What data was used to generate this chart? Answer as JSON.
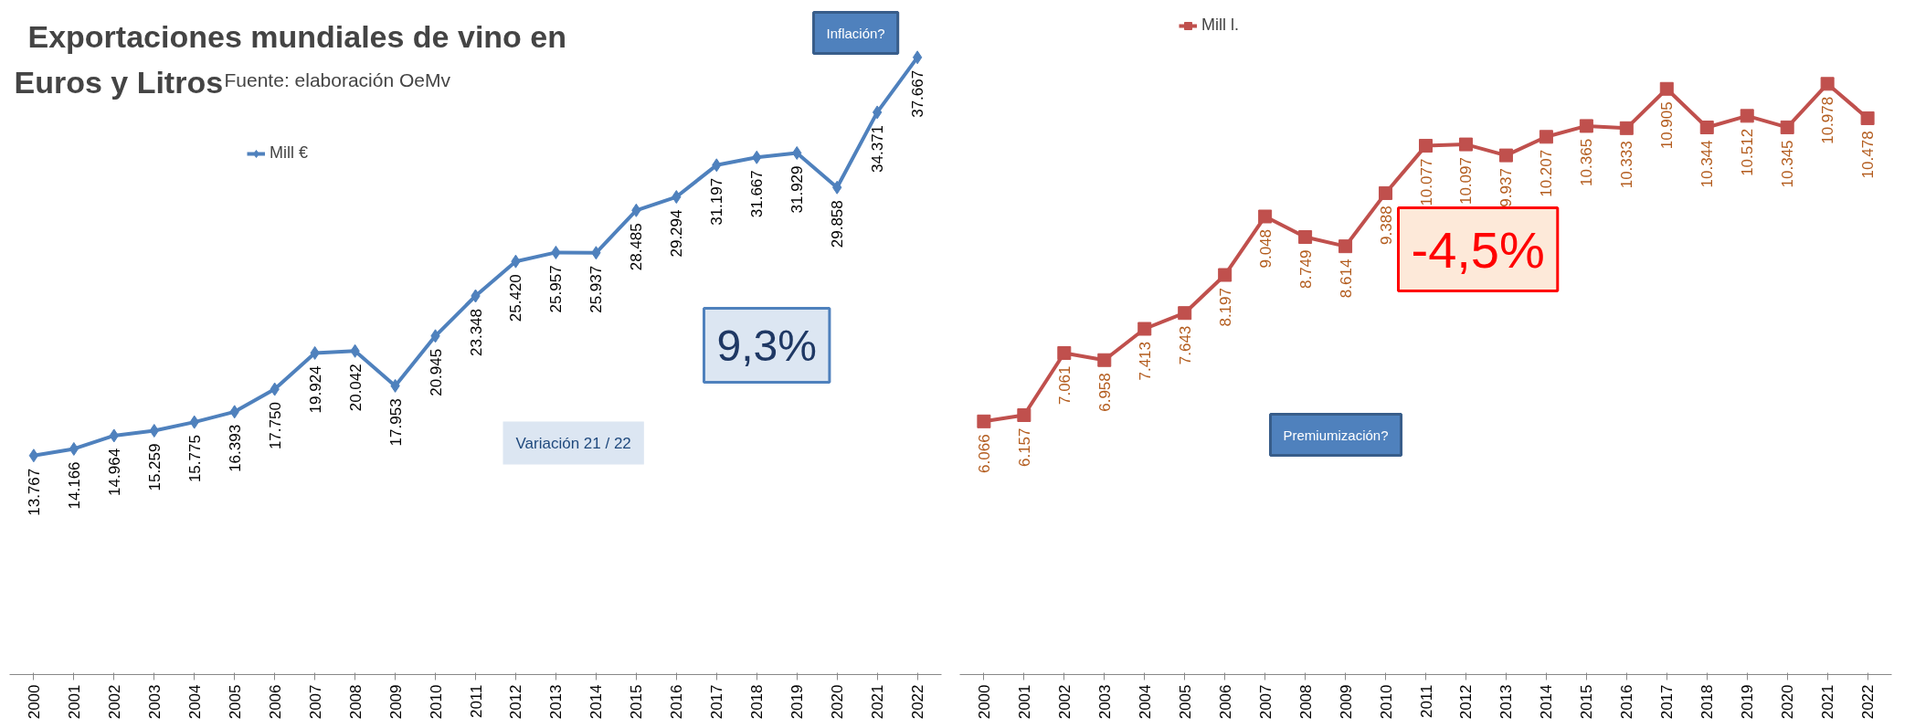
{
  "chart_data": [
    {
      "type": "line",
      "title": "Exportaciones mundiales de vino en Euros y Litros",
      "subtitle": "Fuente: elaboración OeMv",
      "categories": [
        "2000",
        "2001",
        "2002",
        "2003",
        "2004",
        "2005",
        "2006",
        "2007",
        "2008",
        "2009",
        "2010",
        "2011",
        "2012",
        "2013",
        "2014",
        "2015",
        "2016",
        "2017",
        "2018",
        "2019",
        "2020",
        "2021",
        "2022"
      ],
      "series": [
        {
          "name": "Mill €",
          "color": "#4f81bd",
          "values": [
            13767,
            14166,
            14964,
            15259,
            15775,
            16393,
            17750,
            19924,
            20042,
            17953,
            20945,
            23348,
            25420,
            25957,
            25937,
            28485,
            29294,
            31197,
            31667,
            31929,
            29858,
            34371,
            37667
          ],
          "value_labels": [
            "13.767",
            "14.166",
            "14.964",
            "15.259",
            "15.775",
            "16.393",
            "17.750",
            "19.924",
            "20.042",
            "17.953",
            "20.945",
            "23.348",
            "25.420",
            "25.957",
            "25.937",
            "28.485",
            "29.294",
            "31.197",
            "31.667",
            "31.929",
            "29.858",
            "34.371",
            "37.667"
          ]
        }
      ],
      "marker": "diamond",
      "legend": "top left",
      "grid": false,
      "tick_labels": "x",
      "annotations": [
        "Inflación?",
        "9,3%",
        "Variación 21 / 22"
      ]
    },
    {
      "type": "line",
      "categories": [
        "2000",
        "2001",
        "2002",
        "2003",
        "2004",
        "2005",
        "2006",
        "2007",
        "2008",
        "2009",
        "2010",
        "2011",
        "2012",
        "2013",
        "2014",
        "2015",
        "2016",
        "2017",
        "2018",
        "2019",
        "2020",
        "2021",
        "2022"
      ],
      "series": [
        {
          "name": "Mill l.",
          "color": "#c0504d",
          "values": [
            6066,
            6157,
            7061,
            6958,
            7413,
            7643,
            8197,
            9048,
            8749,
            8614,
            9388,
            10077,
            10097,
            9937,
            10207,
            10365,
            10333,
            10905,
            10344,
            10512,
            10345,
            10978,
            10478
          ],
          "value_labels": [
            "6.066",
            "6.157",
            "7.061",
            "6.958",
            "7.413",
            "7.643",
            "8.197",
            "9.048",
            "8.749",
            "8.614",
            "9.388",
            "10.077",
            "10.097",
            "9.937",
            "10.207",
            "10.365",
            "10.333",
            "10.905",
            "10.344",
            "10.512",
            "10.345",
            "10.978",
            "10.478"
          ]
        }
      ],
      "marker": "square",
      "legend": "top left",
      "grid": false,
      "tick_labels": "x",
      "annotations": [
        "-4,5%",
        "Premiumización?"
      ]
    }
  ]
}
